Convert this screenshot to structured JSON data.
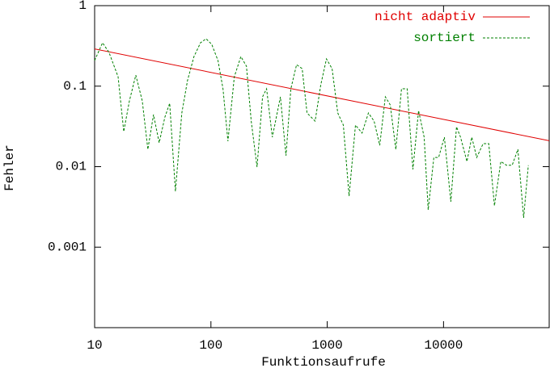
{
  "chart_data": {
    "type": "line",
    "x_label": "Funktionsaufrufe",
    "y_label": "Fehler",
    "xlog": true,
    "ylog": true,
    "xlim": [
      10,
      81000
    ],
    "ylim": [
      0.0001,
      1
    ],
    "xticks": [
      10,
      100,
      1000,
      10000
    ],
    "yticks": [
      1,
      0.1,
      0.01,
      0.001
    ],
    "legend": "upper right",
    "series": [
      {
        "name": "nicht adaptiv",
        "color": "#e00000",
        "dashed": false,
        "x": [
          10,
          81000
        ],
        "values": [
          0.29,
          0.021
        ]
      },
      {
        "name": "sortiert",
        "color": "#008000",
        "dashed": true,
        "x": [
          10,
          11.7,
          13.3,
          15.9,
          17.8,
          19.9,
          22.6,
          25.7,
          28.7,
          32.1,
          35.9,
          40.2,
          44.2,
          49.5,
          56.2,
          62.9,
          71.5,
          81.3,
          90.8,
          101.6,
          115,
          127,
          140,
          159,
          181,
          202,
          222,
          249,
          278,
          301,
          337,
          396,
          442,
          487,
          545,
          609,
          670,
          787,
          880,
          984,
          1101,
          1231,
          1376,
          1541,
          1750,
          1990,
          2260,
          2530,
          2830,
          3160,
          3480,
          3890,
          4350,
          4870,
          5450,
          6100,
          6810,
          7380,
          8260,
          9080,
          10160,
          11560,
          12920,
          14000,
          15900,
          17500,
          19300,
          21900,
          24500,
          27400,
          31100,
          34800,
          38900,
          43600,
          48800,
          53600
        ],
        "values": [
          0.208,
          0.346,
          0.262,
          0.131,
          0.0273,
          0.0656,
          0.137,
          0.0656,
          0.0164,
          0.0443,
          0.0198,
          0.0414,
          0.0612,
          0.00494,
          0.0464,
          0.117,
          0.233,
          0.346,
          0.388,
          0.33,
          0.208,
          0.0928,
          0.0207,
          0.131,
          0.233,
          0.177,
          0.0368,
          0.00988,
          0.0736,
          0.0928,
          0.0232,
          0.0736,
          0.0137,
          0.0928,
          0.185,
          0.165,
          0.0464,
          0.0368,
          0.104,
          0.218,
          0.165,
          0.0464,
          0.0328,
          0.00431,
          0.0328,
          0.0261,
          0.0464,
          0.0368,
          0.0184,
          0.0736,
          0.0585,
          0.0164,
          0.0928,
          0.0928,
          0.00923,
          0.0497,
          0.0232,
          0.00291,
          0.013,
          0.013,
          0.0232,
          0.00366,
          0.0313,
          0.0232,
          0.0116,
          0.0232,
          0.013,
          0.0193,
          0.0193,
          0.00327,
          0.0116,
          0.0104,
          0.0104,
          0.0164,
          0.00231,
          0.0104
        ]
      }
    ]
  }
}
